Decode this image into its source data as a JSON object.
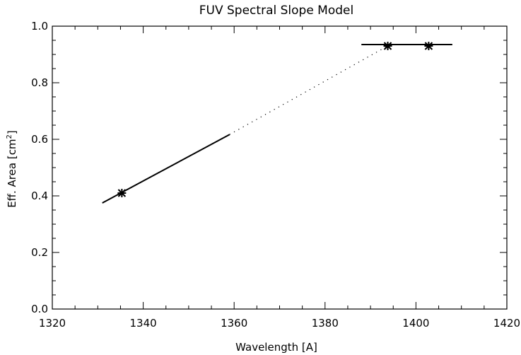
{
  "chart_data": {
    "type": "line",
    "title": "FUV Spectral Slope Model",
    "xlabel": "Wavelength [A]",
    "ylabel_main": "Eff. Area [cm",
    "ylabel_sup": "2",
    "ylabel_end": "]",
    "xlim": [
      1320,
      1420
    ],
    "ylim": [
      0.0,
      1.0
    ],
    "xticks": [
      1320,
      1340,
      1360,
      1380,
      1400,
      1420
    ],
    "xtick_labels": [
      "1320",
      "1340",
      "1360",
      "1380",
      "1400",
      "1420"
    ],
    "yticks": [
      0.0,
      0.2,
      0.4,
      0.6,
      0.8,
      1.0
    ],
    "ytick_labels": [
      "0.0",
      "0.2",
      "0.4",
      "0.6",
      "0.8",
      "1.0"
    ],
    "series": [
      {
        "style": "solid",
        "x": [
          1331,
          1359
        ],
        "y": [
          0.375,
          0.617
        ]
      },
      {
        "style": "dotted",
        "x": [
          1359,
          1394
        ],
        "y": [
          0.617,
          0.932
        ]
      },
      {
        "style": "solid",
        "x": [
          1388,
          1408
        ],
        "y": [
          0.935,
          0.935
        ]
      },
      {
        "style": "markers",
        "marker": "asterisk",
        "x": [
          1335.3,
          1393.8,
          1402.8
        ],
        "y": [
          0.41,
          0.93,
          0.93
        ]
      }
    ],
    "grid": false,
    "legend": "none"
  }
}
